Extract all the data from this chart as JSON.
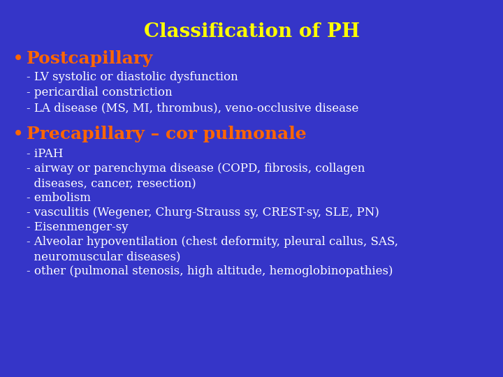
{
  "background_color": "#3535c8",
  "title": "Classification of PH",
  "title_color": "#ffff00",
  "title_fontsize": 20,
  "bullet_color": "#ff6600",
  "bullet1": "Postcapillary",
  "bullet1_fontsize": 18,
  "bullet2": "Precapillary – cor pulmonale",
  "bullet2_fontsize": 18,
  "sub_color": "#ffffff",
  "sub_fontsize": 12,
  "sub1": [
    "- LV systolic or diastolic dysfunction",
    "- pericardial constriction",
    "- LA disease (MS, MI, thrombus), veno-occlusive disease"
  ],
  "sub2_lines": [
    "- iPAH",
    "- airway or parenchyma disease (COPD, fibrosis, collagen",
    "  diseases, cancer, resection)",
    "- embolism",
    "- vasculitis (Wegener, Churg-Strauss sy, CREST-sy, SLE, PN)",
    "- Eisenmenger-sy",
    "- Alveolar hypoventilation (chest deformity, pleural callus, SAS,",
    "  neuromuscular diseases)",
    "- other (pulmonal stenosis, high altitude, hemoglobinopathies)"
  ],
  "fig_width": 7.2,
  "fig_height": 5.4,
  "dpi": 100
}
